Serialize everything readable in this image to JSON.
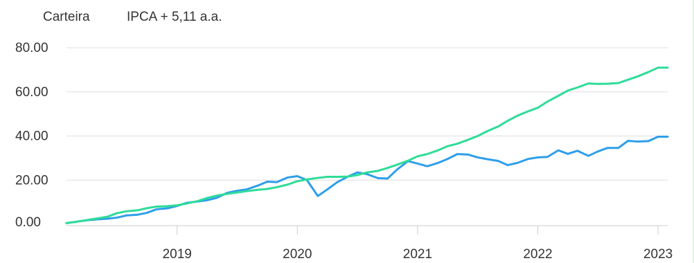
{
  "colors": {
    "carteira": "#2e9eea",
    "ipca": "#2edc98",
    "grid": "#dddddd",
    "axis": "#cccccc",
    "text": "#333333"
  },
  "chart_data": {
    "type": "line",
    "title": "",
    "xlabel": "",
    "ylabel": "",
    "grid": true,
    "legend": "top-left",
    "ylim": [
      0,
      80
    ],
    "yticks": [
      "80.00",
      "60.00",
      "40.00",
      "20.00",
      "0.00"
    ],
    "xticks": [
      "2019",
      "2020",
      "2021",
      "2022",
      "2023"
    ],
    "xlim": [
      2018.08,
      2023.08
    ],
    "x": [
      2018.08,
      2018.17,
      2018.25,
      2018.33,
      2018.42,
      2018.5,
      2018.58,
      2018.67,
      2018.75,
      2018.83,
      2018.92,
      2019.0,
      2019.08,
      2019.17,
      2019.25,
      2019.33,
      2019.42,
      2019.5,
      2019.58,
      2019.67,
      2019.75,
      2019.83,
      2019.92,
      2020.0,
      2020.08,
      2020.17,
      2020.25,
      2020.33,
      2020.42,
      2020.5,
      2020.58,
      2020.67,
      2020.75,
      2020.83,
      2020.92,
      2021.0,
      2021.08,
      2021.17,
      2021.25,
      2021.33,
      2021.42,
      2021.5,
      2021.58,
      2021.67,
      2021.75,
      2021.83,
      2021.92,
      2022.0,
      2022.08,
      2022.17,
      2022.25,
      2022.33,
      2022.42,
      2022.5,
      2022.58,
      2022.67,
      2022.75,
      2022.83,
      2022.92,
      2023.0,
      2023.08
    ],
    "series": [
      {
        "name": "Carteira",
        "values": [
          0.5,
          1.2,
          1.8,
          2.2,
          2.5,
          3.0,
          4.0,
          4.3,
          5.2,
          6.8,
          7.2,
          8.3,
          9.7,
          10.3,
          10.9,
          12.0,
          14.3,
          15.2,
          15.8,
          17.5,
          19.3,
          19.1,
          21.2,
          21.8,
          20.0,
          12.8,
          15.8,
          19.0,
          21.6,
          23.5,
          22.7,
          20.9,
          20.7,
          24.8,
          28.6,
          27.5,
          26.3,
          27.8,
          29.6,
          31.8,
          31.6,
          30.3,
          29.5,
          28.7,
          26.8,
          27.8,
          29.6,
          30.3,
          30.5,
          33.5,
          31.9,
          33.3,
          31.0,
          33.0,
          34.6,
          34.6,
          37.8,
          37.5,
          37.7,
          39.7,
          39.7
        ]
      },
      {
        "name": "IPCA + 5,11 a.a.",
        "values": [
          0.5,
          1.2,
          1.9,
          2.6,
          3.4,
          5.0,
          5.9,
          6.3,
          7.3,
          8.0,
          8.2,
          8.6,
          9.4,
          10.5,
          11.9,
          13.0,
          13.8,
          14.4,
          15.0,
          15.6,
          16.0,
          16.8,
          18.0,
          19.5,
          20.3,
          21.0,
          21.5,
          21.5,
          21.6,
          22.3,
          23.5,
          24.2,
          25.5,
          27.0,
          28.8,
          30.8,
          31.8,
          33.5,
          35.4,
          36.5,
          38.3,
          40.0,
          42.2,
          44.3,
          46.9,
          49.2,
          51.2,
          52.8,
          55.6,
          58.2,
          60.6,
          62.0,
          63.8,
          63.6,
          63.7,
          64.0,
          65.5,
          67.0,
          69.0,
          71.0,
          71.0
        ]
      }
    ]
  }
}
